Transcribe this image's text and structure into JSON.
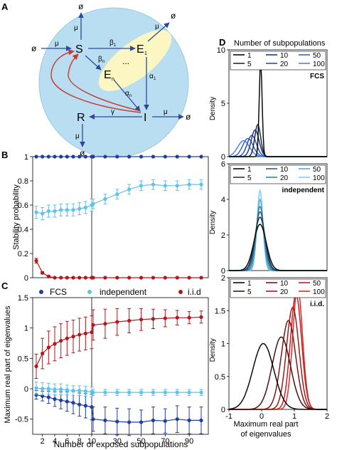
{
  "panel_labels": [
    "A",
    "B",
    "C",
    "D"
  ],
  "colors": {
    "fcs": "#1f3e9e",
    "independent": "#5fc2e6",
    "iid": "#b3161b",
    "sphere": "#b9def2",
    "ellipse": "#fbf6c2",
    "arrow_blue": "#2b4a9f",
    "arrow_red": "#c23a30"
  },
  "diagram": {
    "nodes": {
      "S": "S",
      "E1": "E",
      "E1_sub": "1",
      "En": "E",
      "En_sub": "n",
      "I": "I",
      "R": "R",
      "dots": "..."
    },
    "rates": {
      "beta1": "β",
      "beta1_sub": "1",
      "betan": "β",
      "betan_sub": "n",
      "alpha1": "α",
      "alpha1_sub": "1",
      "alphan": "α",
      "alphan_sub": "n",
      "gamma": "γ",
      "mu": "μ",
      "empty": "ø"
    }
  },
  "chart_data": [
    {
      "type": "line",
      "panel": "B",
      "ylabel": "Stability probability",
      "xlabel": "",
      "ylim": [
        0,
        1
      ],
      "yticks": [
        0,
        0.2,
        0.4,
        0.6,
        0.8,
        1
      ],
      "x_left": [
        1,
        2,
        3,
        4,
        5,
        6,
        7,
        8,
        9,
        10
      ],
      "x_right": [
        10,
        20,
        30,
        40,
        50,
        60,
        70,
        80,
        90,
        100
      ],
      "series": [
        {
          "name": "FCS",
          "left": [
            1,
            1,
            1,
            1,
            1,
            1,
            1,
            1,
            1,
            1
          ],
          "right": [
            1,
            1,
            1,
            1,
            1,
            1,
            1,
            1,
            1,
            1
          ],
          "err_left": [
            0,
            0,
            0,
            0,
            0,
            0,
            0,
            0,
            0,
            0
          ],
          "err_right": [
            0,
            0,
            0,
            0,
            0,
            0,
            0,
            0,
            0,
            0
          ]
        },
        {
          "name": "independent",
          "left": [
            0.54,
            0.53,
            0.55,
            0.55,
            0.56,
            0.56,
            0.56,
            0.57,
            0.58,
            0.6
          ],
          "right": [
            0.61,
            0.65,
            0.69,
            0.73,
            0.76,
            0.77,
            0.76,
            0.76,
            0.77,
            0.77
          ],
          "err_left": [
            0.05,
            0.05,
            0.05,
            0.05,
            0.05,
            0.05,
            0.05,
            0.05,
            0.05,
            0.05
          ],
          "err_right": [
            0.04,
            0.04,
            0.04,
            0.04,
            0.04,
            0.04,
            0.04,
            0.04,
            0.04,
            0.04
          ]
        },
        {
          "name": "i.i.d",
          "left": [
            0.14,
            0.04,
            0.01,
            0,
            0,
            0,
            0,
            0,
            0,
            0
          ],
          "right": [
            0,
            0,
            0,
            0,
            0,
            0,
            0,
            0,
            0,
            0
          ],
          "err_left": [
            0.02,
            0.01,
            0.01,
            0,
            0,
            0,
            0,
            0,
            0,
            0
          ],
          "err_right": [
            0,
            0,
            0,
            0,
            0,
            0,
            0,
            0,
            0,
            0
          ]
        }
      ],
      "legend": [
        "FCS",
        "independent",
        "i.i.d"
      ]
    },
    {
      "type": "line",
      "panel": "C",
      "ylabel": "Maximum real part of eigenvalues",
      "xlabel": "Number of exposed subpopulations",
      "ylim": [
        -0.75,
        1.5
      ],
      "yticks": [
        -0.5,
        0,
        0.5,
        1,
        1.5
      ],
      "xticks_left": [
        "2",
        "4",
        "6",
        "8",
        "10"
      ],
      "xticks_right": [
        "10",
        "30",
        "50",
        "70",
        "90"
      ],
      "x_left": [
        1,
        2,
        3,
        4,
        5,
        6,
        7,
        8,
        9,
        10
      ],
      "x_right": [
        10,
        20,
        30,
        40,
        50,
        60,
        70,
        80,
        90,
        100
      ],
      "series": [
        {
          "name": "FCS",
          "left": [
            -0.1,
            -0.12,
            -0.14,
            -0.17,
            -0.19,
            -0.21,
            -0.23,
            -0.26,
            -0.28,
            -0.3
          ],
          "right": [
            -0.5,
            -0.52,
            -0.54,
            -0.55,
            -0.55,
            -0.52,
            -0.53,
            -0.5,
            -0.52,
            -0.52
          ],
          "err_left": [
            0.07,
            0.08,
            0.1,
            0.12,
            0.14,
            0.16,
            0.18,
            0.19,
            0.2,
            0.21
          ],
          "err_right": [
            0.2,
            0.22,
            0.22,
            0.22,
            0.2,
            0.22,
            0.2,
            0.22,
            0.22,
            0.22
          ]
        },
        {
          "name": "independent",
          "left": [
            0.01,
            0.0,
            0.0,
            -0.01,
            -0.01,
            -0.02,
            -0.03,
            -0.03,
            -0.04,
            -0.05
          ],
          "right": [
            -0.06,
            -0.06,
            -0.06,
            -0.06,
            -0.06,
            -0.06,
            -0.06,
            -0.06,
            -0.06,
            -0.06
          ],
          "err_left": [
            0.1,
            0.1,
            0.09,
            0.09,
            0.09,
            0.08,
            0.08,
            0.08,
            0.08,
            0.08
          ],
          "err_right": [
            0.05,
            0.05,
            0.05,
            0.05,
            0.05,
            0.05,
            0.05,
            0.05,
            0.05,
            0.05
          ]
        },
        {
          "name": "i.i.d",
          "left": [
            0.37,
            0.58,
            0.68,
            0.74,
            0.79,
            0.83,
            0.86,
            0.89,
            0.91,
            0.93
          ],
          "right": [
            1.05,
            1.07,
            1.1,
            1.12,
            1.14,
            1.15,
            1.16,
            1.17,
            1.17,
            1.18
          ],
          "err_left": [
            0.2,
            0.25,
            0.27,
            0.28,
            0.28,
            0.28,
            0.27,
            0.27,
            0.27,
            0.27
          ],
          "err_right": [
            0.25,
            0.24,
            0.22,
            0.2,
            0.18,
            0.16,
            0.14,
            0.12,
            0.1,
            0.1
          ]
        }
      ]
    },
    {
      "type": "line",
      "panel": "D",
      "legend_title": "Number of subpopulations",
      "xlabel": "Maximum real part of eigenvalues",
      "xlabel_lines": [
        "Maximum real part",
        "of eigenvalues"
      ],
      "xlim": [
        -1,
        2
      ],
      "xticks": [
        -1,
        0,
        1,
        2
      ],
      "subplots": [
        {
          "title": "FCS",
          "ylabel": "Density",
          "ylim": [
            0,
            10
          ],
          "yticks": [
            0,
            5,
            10
          ],
          "legend": [
            "1",
            "10",
            "50",
            "5",
            "20",
            "100"
          ],
          "curves": [
            {
              "name": "1",
              "center": -0.03,
              "sd": 0.045,
              "peak": 8.9,
              "color": "#0a0a0a"
            },
            {
              "name": "5",
              "center": -0.12,
              "sd": 0.09,
              "peak": 3.0,
              "color": "#202a46"
            },
            {
              "name": "10",
              "center": -0.2,
              "sd": 0.12,
              "peak": 2.5,
              "color": "#253a7e"
            },
            {
              "name": "20",
              "center": -0.3,
              "sd": 0.14,
              "peak": 2.0,
              "color": "#2b50b8"
            },
            {
              "name": "50",
              "center": -0.42,
              "sd": 0.16,
              "peak": 1.7,
              "color": "#3365d2"
            },
            {
              "name": "100",
              "center": -0.55,
              "sd": 0.18,
              "peak": 1.5,
              "color": "#4a86e8"
            }
          ]
        },
        {
          "title": "independent",
          "ylabel": "Density",
          "ylim": [
            0,
            6
          ],
          "yticks": [
            0,
            2,
            4,
            6
          ],
          "legend": [
            "1",
            "10",
            "50",
            "5",
            "20",
            "100"
          ],
          "curves": [
            {
              "name": "1",
              "center": -0.05,
              "sd": 0.19,
              "peak": 2.6,
              "color": "#0a0a0a"
            },
            {
              "name": "5",
              "center": -0.05,
              "sd": 0.16,
              "peak": 3.0,
              "color": "#1c3a4e"
            },
            {
              "name": "10",
              "center": -0.05,
              "sd": 0.14,
              "peak": 3.3,
              "color": "#2a607e"
            },
            {
              "name": "20",
              "center": -0.05,
              "sd": 0.12,
              "peak": 3.6,
              "color": "#3582aa"
            },
            {
              "name": "50",
              "center": -0.05,
              "sd": 0.1,
              "peak": 4.0,
              "color": "#55a9d6"
            },
            {
              "name": "100",
              "center": -0.05,
              "sd": 0.09,
              "peak": 4.5,
              "color": "#7cd0f2"
            }
          ]
        },
        {
          "title": "i.i.d.",
          "ylabel": "Density",
          "ylim": [
            0,
            2
          ],
          "yticks": [
            0,
            0.5,
            1,
            1.5,
            2
          ],
          "legend": [
            "1",
            "10",
            "50",
            "5",
            "20",
            "100"
          ],
          "curves": [
            {
              "name": "1",
              "center": 0.05,
              "sd": 0.32,
              "peak": 1.0,
              "color": "#0a0a0a"
            },
            {
              "name": "5",
              "center": 0.6,
              "sd": 0.28,
              "peak": 1.1,
              "color": "#4a1010"
            },
            {
              "name": "10",
              "center": 0.82,
              "sd": 0.22,
              "peak": 1.35,
              "color": "#7e1515"
            },
            {
              "name": "20",
              "center": 0.95,
              "sd": 0.19,
              "peak": 1.55,
              "color": "#a21818"
            },
            {
              "name": "50",
              "center": 1.05,
              "sd": 0.17,
              "peak": 1.75,
              "color": "#c42020"
            },
            {
              "name": "100",
              "center": 1.1,
              "sd": 0.15,
              "peak": 1.85,
              "color": "#dd2a2a"
            }
          ]
        }
      ]
    }
  ]
}
